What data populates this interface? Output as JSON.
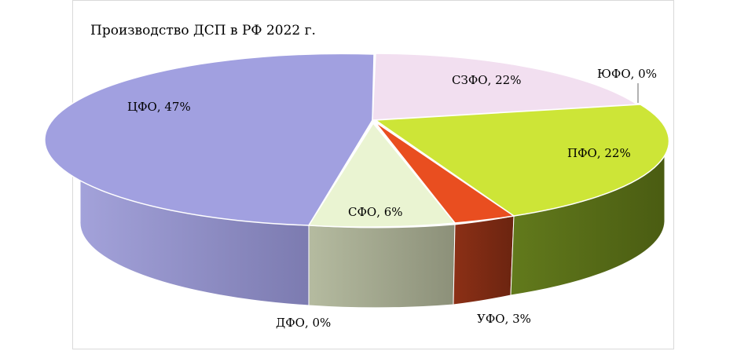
{
  "chart_data": {
    "type": "pie",
    "title": "Производство ДСП в РФ 2022 г.",
    "slices": [
      {
        "name": "ЦФО",
        "value": 47,
        "label": "ЦФО, 47%",
        "color": "#a1a0e0",
        "side_color": "#8585c0"
      },
      {
        "name": "СЗФО",
        "value": 22,
        "label": "СЗФО, 22%",
        "color": "#f2dff0",
        "side_color": "#cdbccb"
      },
      {
        "name": "ЮФО",
        "value": 0,
        "label": "ЮФО, 0%",
        "color": "#e8e8e8",
        "side_color": "#bfbfbf"
      },
      {
        "name": "ПФО",
        "value": 22,
        "label": "ПФО, 22%",
        "color": "#cde537",
        "side_color": "#5a6e1a"
      },
      {
        "name": "УФО",
        "value": 3,
        "label": "УФО, 3%",
        "color": "#e94e20",
        "side_color": "#7a2a12"
      },
      {
        "name": "СФО",
        "value": 6,
        "label": "СФО, 6%",
        "color": "#eaf4d2",
        "side_color": "#a7ae92"
      },
      {
        "name": "ДФО",
        "value": 0,
        "label": "ДФО, 0%",
        "color": "#e0e0e0",
        "side_color": "#b0b0b0"
      }
    ],
    "legend": "none"
  }
}
